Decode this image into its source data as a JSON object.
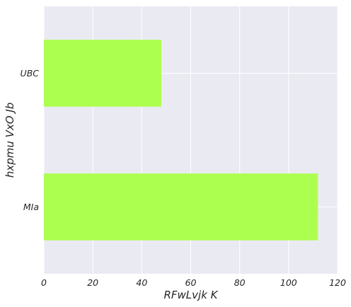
{
  "chart_data": {
    "type": "bar",
    "orientation": "horizontal",
    "categories": [
      "UBC",
      "MIa"
    ],
    "values": [
      48,
      112
    ],
    "xlabel": "RFwLvjk K",
    "ylabel": "hxpmu  VxO Jb",
    "xlim": [
      0,
      120
    ],
    "xticks": [
      0,
      20,
      40,
      60,
      80,
      100,
      120
    ],
    "xtick_labels": [
      "0",
      "20",
      "40",
      "60",
      "80",
      "100",
      "120"
    ],
    "grid": true,
    "colors": {
      "bar": "#adff4f",
      "plot_background": "#eaeaf2",
      "grid": "#ffffff"
    }
  }
}
